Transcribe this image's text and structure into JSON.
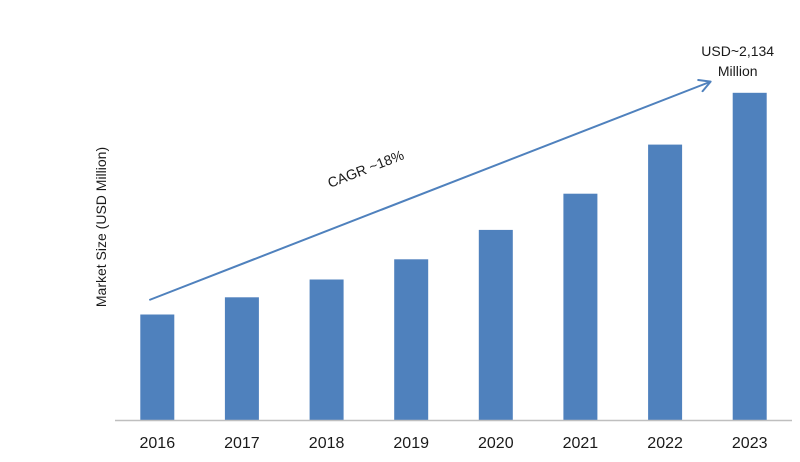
{
  "chart_data": {
    "type": "bar",
    "title": "",
    "xlabel": "",
    "ylabel": "Market Size (USD Million)",
    "categories": [
      "2016",
      "2017",
      "2018",
      "2019",
      "2020",
      "2021",
      "2022",
      "2023"
    ],
    "values": [
      688,
      800,
      916,
      1048,
      1240,
      1476,
      1796,
      2134
    ],
    "ylim": [
      0,
      2250
    ],
    "grid": false,
    "legend": "none",
    "bar_color": "#4f81bd",
    "arrow_color": "#4f81bd",
    "annotations": {
      "growth_label": "CAGR ~18%",
      "end_value_line1": "USD~2,134",
      "end_value_line2": "Million"
    }
  }
}
